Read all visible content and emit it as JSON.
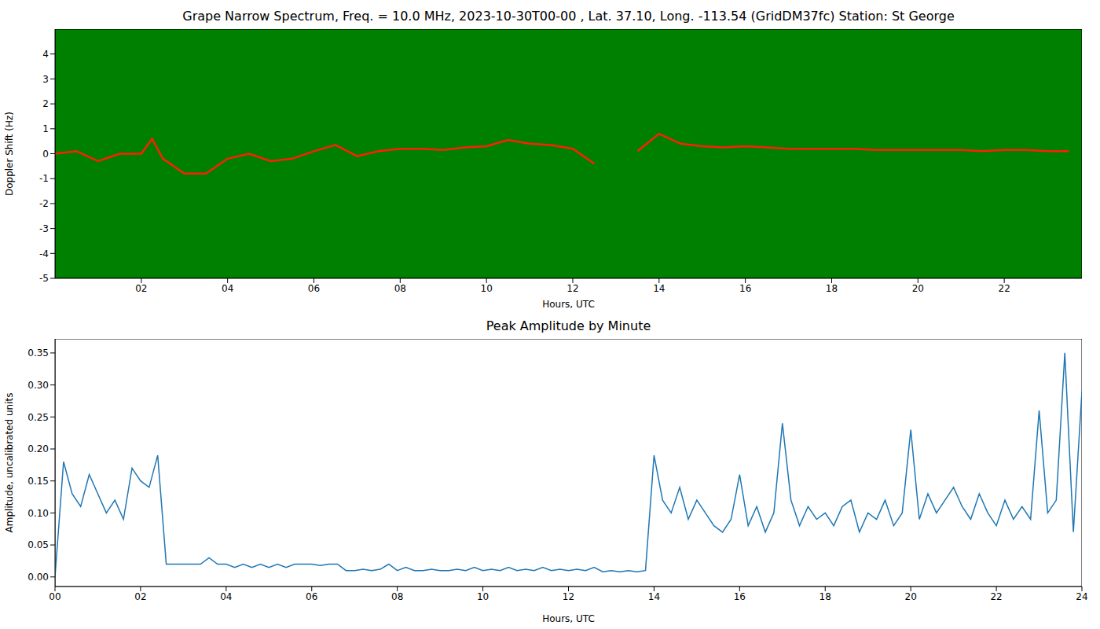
{
  "chart_data": [
    {
      "type": "spectrogram",
      "title": "Grape Narrow Spectrum, Freq. = 10.0 MHz, 2023-10-30T00-00 , Lat.  37.10, Long. -113.54 (GridDM37fc) Station: St George",
      "x_label": "Hours, UTC",
      "y_label": "Doppler Shift (Hz)",
      "x": [
        0,
        0.5,
        1,
        1.5,
        2,
        2.25,
        2.5,
        3,
        3.5,
        4,
        4.5,
        5,
        5.5,
        6,
        6.5,
        7,
        7.5,
        8,
        8.5,
        9,
        9.5,
        10,
        10.5,
        11,
        11.5,
        12,
        12.5,
        13,
        13.5,
        14,
        14.5,
        15,
        15.5,
        16,
        16.5,
        17,
        17.5,
        18,
        18.5,
        19,
        19.5,
        20,
        20.5,
        21,
        21.5,
        22,
        22.5,
        23,
        23.5
      ],
      "values": [
        0.0,
        0.1,
        -0.3,
        0.0,
        0.0,
        0.6,
        -0.2,
        -0.8,
        -0.8,
        -0.2,
        0.0,
        -0.3,
        -0.2,
        0.1,
        0.35,
        -0.1,
        0.1,
        0.2,
        0.2,
        0.15,
        0.25,
        0.3,
        0.55,
        0.4,
        0.35,
        0.2,
        -0.4,
        null,
        0.1,
        0.8,
        0.4,
        0.3,
        0.25,
        0.3,
        0.25,
        0.2,
        0.2,
        0.2,
        0.2,
        0.15,
        0.15,
        0.15,
        0.15,
        0.15,
        0.1,
        0.15,
        0.15,
        0.1,
        0.1
      ],
      "color": "#ff2000",
      "xlim": [
        0,
        23.8
      ],
      "ylim": [
        -5,
        5
      ],
      "xticks": [
        {
          "value": 2,
          "label": "02"
        },
        {
          "value": 4,
          "label": "04"
        },
        {
          "value": 6,
          "label": "06"
        },
        {
          "value": 8,
          "label": "08"
        },
        {
          "value": 10,
          "label": "10"
        },
        {
          "value": 12,
          "label": "12"
        },
        {
          "value": 14,
          "label": "14"
        },
        {
          "value": 16,
          "label": "16"
        },
        {
          "value": 18,
          "label": "18"
        },
        {
          "value": 20,
          "label": "20"
        },
        {
          "value": 22,
          "label": "22"
        }
      ],
      "yticks": [
        -5,
        -4,
        -3,
        -2,
        -1,
        0,
        1,
        2,
        3,
        4
      ],
      "grid": false
    },
    {
      "type": "line",
      "title": "Peak Amplitude by Minute",
      "x_label": "Hours, UTC",
      "y_label": "Amplitude, uncalibrated units",
      "x": [
        0,
        0.2,
        0.4,
        0.6,
        0.8,
        1,
        1.2,
        1.4,
        1.6,
        1.8,
        2,
        2.2,
        2.4,
        2.6,
        2.8,
        3,
        3.2,
        3.4,
        3.6,
        3.8,
        4,
        4.2,
        4.4,
        4.6,
        4.8,
        5,
        5.2,
        5.4,
        5.6,
        5.8,
        6,
        6.2,
        6.4,
        6.6,
        6.8,
        7,
        7.2,
        7.4,
        7.6,
        7.8,
        8,
        8.2,
        8.4,
        8.6,
        8.8,
        9,
        9.2,
        9.4,
        9.6,
        9.8,
        10,
        10.2,
        10.4,
        10.6,
        10.8,
        11,
        11.2,
        11.4,
        11.6,
        11.8,
        12,
        12.2,
        12.4,
        12.6,
        12.8,
        13,
        13.2,
        13.4,
        13.6,
        13.8,
        14,
        14.2,
        14.4,
        14.6,
        14.8,
        15,
        15.2,
        15.4,
        15.6,
        15.8,
        16,
        16.2,
        16.4,
        16.6,
        16.8,
        17,
        17.2,
        17.4,
        17.6,
        17.8,
        18,
        18.2,
        18.4,
        18.6,
        18.8,
        19,
        19.2,
        19.4,
        19.6,
        19.8,
        20,
        20.2,
        20.4,
        20.6,
        20.8,
        21,
        21.2,
        21.4,
        21.6,
        21.8,
        22,
        22.2,
        22.4,
        22.6,
        22.8,
        23,
        23.2,
        23.4,
        23.6,
        23.8,
        24
      ],
      "values": [
        0.0,
        0.18,
        0.13,
        0.11,
        0.16,
        0.13,
        0.1,
        0.12,
        0.09,
        0.17,
        0.15,
        0.14,
        0.19,
        0.02,
        0.02,
        0.02,
        0.02,
        0.02,
        0.03,
        0.02,
        0.02,
        0.015,
        0.02,
        0.015,
        0.02,
        0.015,
        0.02,
        0.015,
        0.02,
        0.02,
        0.02,
        0.018,
        0.02,
        0.02,
        0.01,
        0.01,
        0.012,
        0.01,
        0.012,
        0.02,
        0.01,
        0.015,
        0.01,
        0.01,
        0.012,
        0.01,
        0.01,
        0.012,
        0.01,
        0.015,
        0.01,
        0.012,
        0.01,
        0.015,
        0.01,
        0.012,
        0.01,
        0.015,
        0.01,
        0.012,
        0.01,
        0.012,
        0.01,
        0.015,
        0.008,
        0.01,
        0.008,
        0.01,
        0.008,
        0.01,
        0.19,
        0.12,
        0.1,
        0.14,
        0.09,
        0.12,
        0.1,
        0.08,
        0.07,
        0.09,
        0.16,
        0.08,
        0.11,
        0.07,
        0.1,
        0.24,
        0.12,
        0.08,
        0.11,
        0.09,
        0.1,
        0.08,
        0.11,
        0.12,
        0.07,
        0.1,
        0.09,
        0.12,
        0.08,
        0.1,
        0.23,
        0.09,
        0.13,
        0.1,
        0.12,
        0.14,
        0.11,
        0.09,
        0.13,
        0.1,
        0.08,
        0.12,
        0.09,
        0.11,
        0.09,
        0.26,
        0.1,
        0.12,
        0.35,
        0.07,
        0.29
      ],
      "color": "#1f77b4",
      "xlim": [
        0,
        24
      ],
      "ylim": [
        -0.015,
        0.372
      ],
      "xticks": [
        {
          "value": 0,
          "label": "00"
        },
        {
          "value": 2,
          "label": "02"
        },
        {
          "value": 4,
          "label": "04"
        },
        {
          "value": 6,
          "label": "06"
        },
        {
          "value": 8,
          "label": "08"
        },
        {
          "value": 10,
          "label": "10"
        },
        {
          "value": 12,
          "label": "12"
        },
        {
          "value": 14,
          "label": "14"
        },
        {
          "value": 16,
          "label": "16"
        },
        {
          "value": 18,
          "label": "18"
        },
        {
          "value": 20,
          "label": "20"
        },
        {
          "value": 22,
          "label": "22"
        },
        {
          "value": 24,
          "label": "24"
        }
      ],
      "yticks": [
        {
          "value": 0,
          "label": "0.00"
        },
        {
          "value": 0.05,
          "label": "0.05"
        },
        {
          "value": 0.1,
          "label": "0.10"
        },
        {
          "value": 0.15,
          "label": "0.15"
        },
        {
          "value": 0.2,
          "label": "0.20"
        },
        {
          "value": 0.25,
          "label": "0.25"
        },
        {
          "value": 0.3,
          "label": "0.30"
        },
        {
          "value": 0.35,
          "label": "0.35"
        }
      ],
      "grid": false
    }
  ]
}
